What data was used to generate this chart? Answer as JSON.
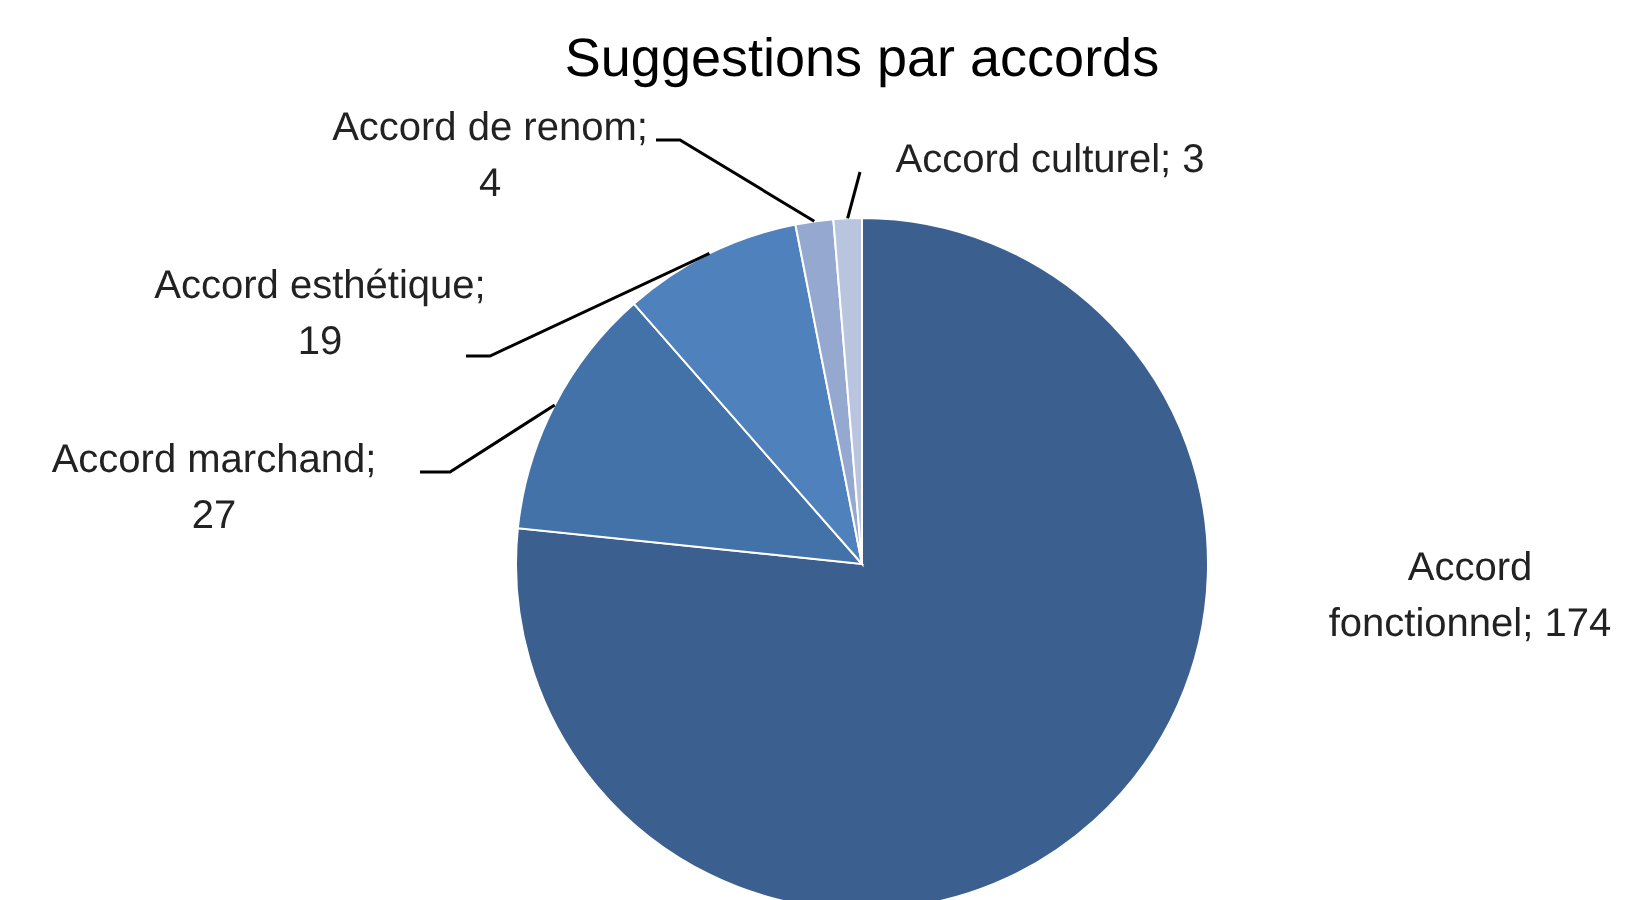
{
  "chart_data": {
    "type": "pie",
    "title": "Suggestions par accords",
    "categories": [
      null,
      null,
      null,
      null,
      null
    ],
    "values": [
      174,
      27,
      19,
      4,
      3
    ],
    "colors": [
      "#3b5f8f",
      "#4372a8",
      "#4f81bd",
      "#95a9d0",
      "#b9c5df"
    ],
    "value_labels": [
      "Accord fonctionnel; 174",
      "Accord marchand; 27",
      "Accord esthétique; 19",
      "Accord de renom; 4",
      "Accord culturel; 3"
    ]
  }
}
